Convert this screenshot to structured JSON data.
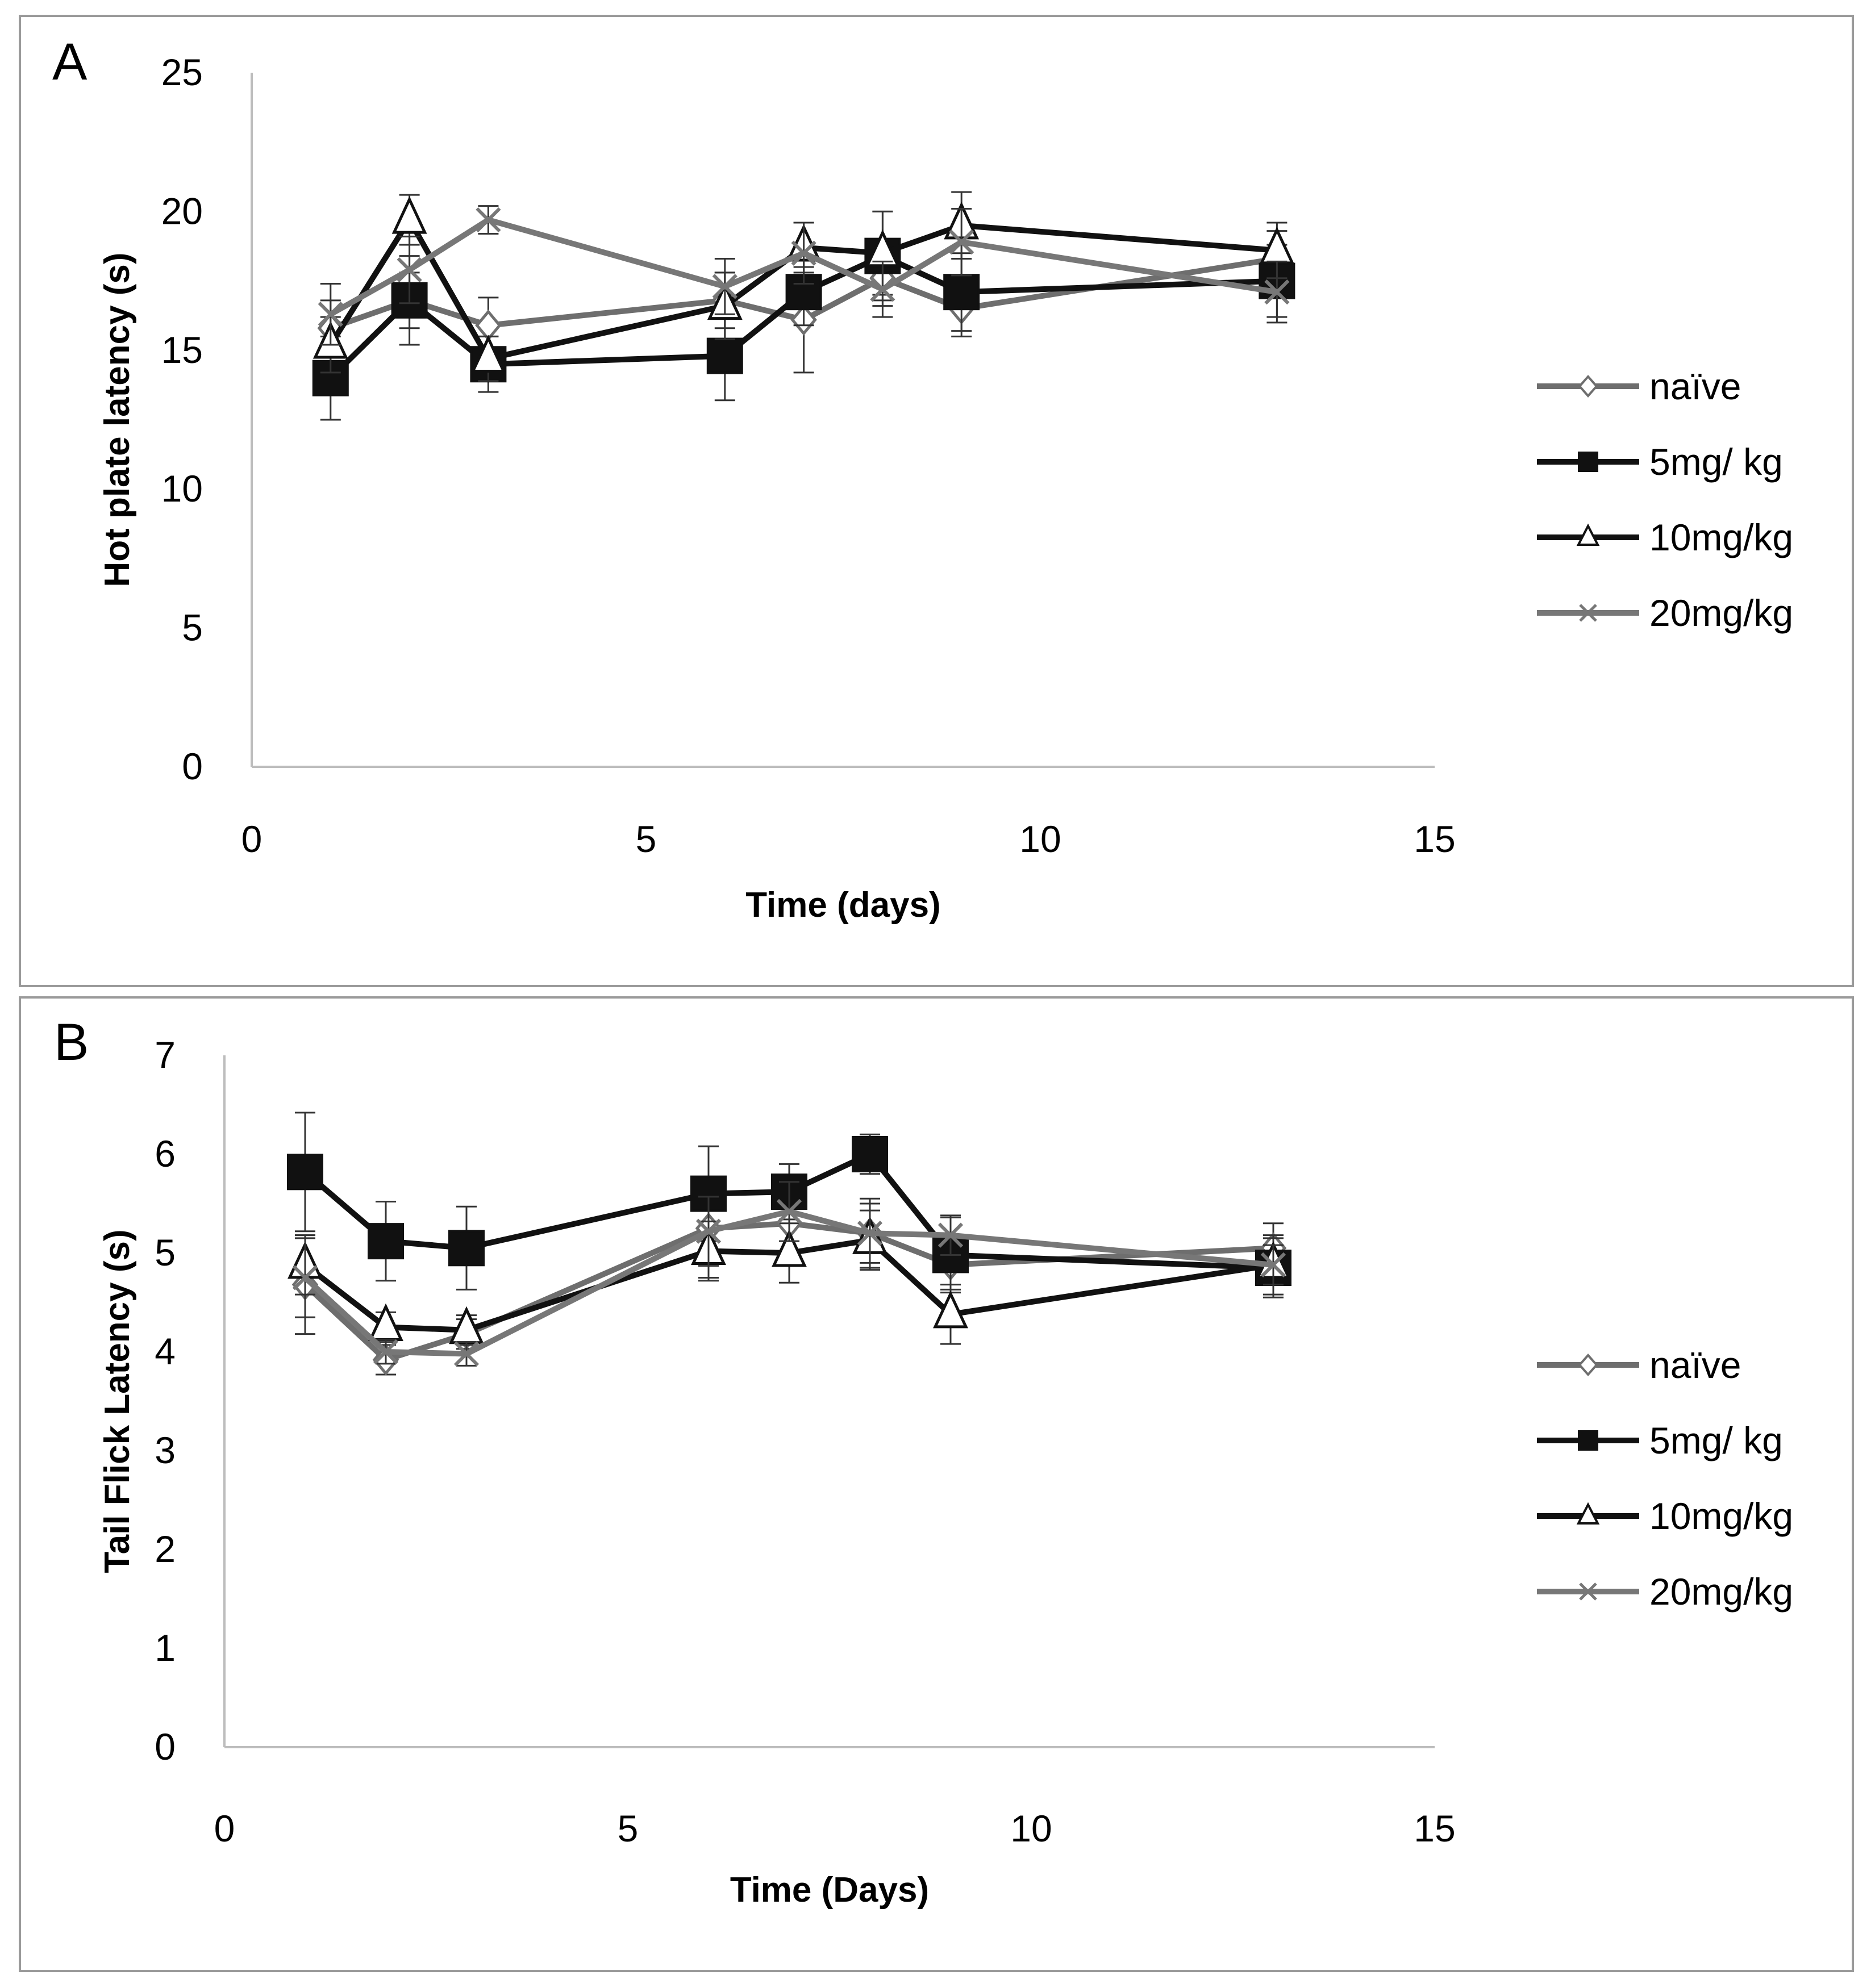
{
  "colors": {
    "naive": "#6e6e6e",
    "mg5": "#111111",
    "mg10": "#111111",
    "mg20": "#777777",
    "axis": "#bdbdbd",
    "panel_border": "#9a9a9a"
  },
  "chart_data": [
    {
      "type": "line",
      "panel_label": "A",
      "xlabel": "Time (days)",
      "ylabel": "Hot plate latency (s)",
      "xlim": [
        0,
        15
      ],
      "ylim": [
        0,
        25
      ],
      "xticks": [
        0,
        5,
        10,
        15
      ],
      "yticks": [
        0,
        5,
        10,
        15,
        20,
        25
      ],
      "legend_position": "right",
      "x": [
        1,
        2,
        3,
        6,
        7,
        8,
        9,
        13
      ],
      "series": [
        {
          "name": "naïve",
          "key": "naive",
          "marker": "diamond",
          "values": [
            15.8,
            16.8,
            15.9,
            16.8,
            16.1,
            17.6,
            16.5,
            18.3
          ],
          "errors": [
            1.0,
            1.0,
            1.0,
            1.0,
            1.9,
            1.0,
            1.0,
            1.0
          ]
        },
        {
          "name": "5mg/ kg",
          "key": "mg5",
          "marker": "square",
          "values": [
            14.0,
            16.8,
            14.5,
            14.8,
            17.1,
            18.4,
            17.1,
            17.5
          ],
          "errors": [
            1.5,
            1.6,
            1.0,
            1.6,
            1.2,
            1.6,
            1.4,
            1.3
          ]
        },
        {
          "name": "10mg/kg",
          "key": "mg10",
          "marker": "triangle",
          "values": [
            15.2,
            19.7,
            14.7,
            16.6,
            18.7,
            18.5,
            19.5,
            18.6
          ],
          "errors": [
            1.0,
            0.9,
            0.8,
            1.2,
            0.9,
            1.5,
            1.2,
            1.0
          ]
        },
        {
          "name": "20mg/kg",
          "key": "mg20",
          "marker": "cross",
          "values": [
            16.3,
            17.9,
            19.7,
            17.3,
            18.5,
            17.2,
            18.9,
            17.1
          ],
          "errors": [
            1.1,
            1.2,
            0.5,
            1.0,
            1.1,
            1.0,
            1.2,
            1.1
          ]
        }
      ]
    },
    {
      "type": "line",
      "panel_label": "B",
      "xlabel": "Time (Days)",
      "ylabel": "Tail Flick Latency (s)",
      "xlim": [
        0,
        15
      ],
      "ylim": [
        0,
        7
      ],
      "xticks": [
        0,
        5,
        10,
        15
      ],
      "yticks": [
        0,
        1,
        2,
        3,
        4,
        5,
        6,
        7
      ],
      "legend_position": "right",
      "x": [
        1,
        2,
        3,
        6,
        7,
        8,
        9,
        13
      ],
      "series": [
        {
          "name": "naïve",
          "key": "naive",
          "marker": "diamond",
          "values": [
            4.68,
            3.92,
            4.18,
            5.25,
            5.3,
            5.2,
            4.88,
            5.05
          ],
          "errors": [
            0.5,
            0.15,
            0.15,
            0.5,
            0.3,
            0.35,
            0.25,
            0.25
          ]
        },
        {
          "name": "5mg/ kg",
          "key": "mg5",
          "marker": "square",
          "values": [
            5.82,
            5.12,
            5.05,
            5.6,
            5.62,
            6.0,
            4.98,
            4.85
          ],
          "errors": [
            0.6,
            0.4,
            0.42,
            0.48,
            0.28,
            0.2,
            0.38,
            0.3
          ]
        },
        {
          "name": "10mg/kg",
          "key": "mg10",
          "marker": "triangle",
          "values": [
            4.88,
            4.25,
            4.22,
            5.02,
            5.0,
            5.13,
            4.38,
            4.88
          ],
          "errors": [
            0.3,
            0.15,
            0.15,
            0.3,
            0.3,
            0.3,
            0.3,
            0.3
          ]
        },
        {
          "name": "20mg/kg",
          "key": "mg20",
          "marker": "cross",
          "values": [
            4.75,
            4.0,
            3.98,
            5.22,
            5.42,
            5.2,
            5.18,
            4.88
          ],
          "errors": [
            0.4,
            0.12,
            0.12,
            0.35,
            0.3,
            0.3,
            0.2,
            0.2
          ]
        }
      ]
    }
  ]
}
